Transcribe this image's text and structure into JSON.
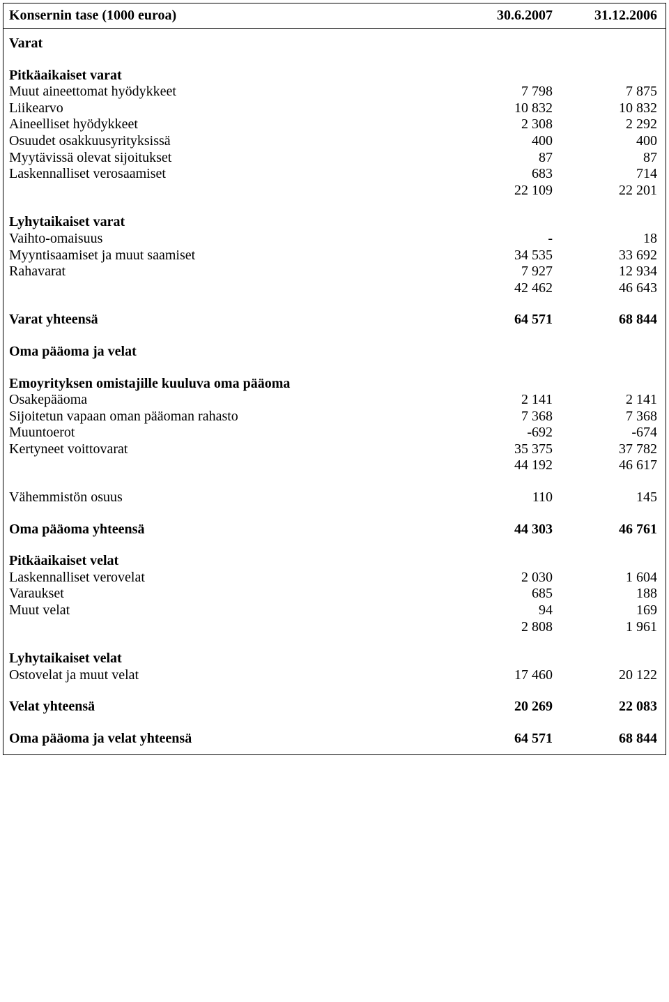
{
  "header": {
    "title": "Konsernin tase (1000 euroa)",
    "col1": "30.6.2007",
    "col2": "31.12.2006"
  },
  "sections": {
    "varat": "Varat",
    "pitkavarat": "Pitkäaikaiset varat",
    "lyhytvarat": "Lyhytaikaiset varat",
    "varatyht": "Varat yhteensä",
    "omapaaoma": "Oma pääoma ja velat",
    "emo": "Emoyrityksen omistajille kuuluva oma pääoma",
    "vahemmisto": "Vähemmistön osuus",
    "omapaaomayht": "Oma pääoma yhteensä",
    "pitkavelat": "Pitkäaikaiset velat",
    "lyhytvelat": "Lyhytaikaiset velat",
    "velatyht": "Velat yhteensä",
    "opjvyht": "Oma pääoma ja velat yhteensä"
  },
  "rows": {
    "muuaineet": {
      "label": "Muut aineettomat hyödykkeet",
      "c1": "7 798",
      "c2": "7 875"
    },
    "liikearvo": {
      "label": "Liikearvo",
      "c1": "10 832",
      "c2": "10 832"
    },
    "aineelliset": {
      "label": "Aineelliset hyödykkeet",
      "c1": "2 308",
      "c2": "2 292"
    },
    "osuudet": {
      "label": "Osuudet osakkuusyrityksissä",
      "c1": "400",
      "c2": "400"
    },
    "myytavissa": {
      "label": "Myytävissä olevat sijoitukset",
      "c1": "87",
      "c2": "87"
    },
    "laskvero": {
      "label": "Laskennalliset verosaamiset",
      "c1": "683",
      "c2": "714"
    },
    "pitkasum": {
      "label": "",
      "c1": "22 109",
      "c2": "22 201"
    },
    "vaihto": {
      "label": "Vaihto-omaisuus",
      "c1": "-",
      "c2": "18"
    },
    "myyntisaam": {
      "label": "Myyntisaamiset ja muut saamiset",
      "c1": "34 535",
      "c2": "33 692"
    },
    "rahavarat": {
      "label": "Rahavarat",
      "c1": "7 927",
      "c2": "12 934"
    },
    "lyhytsum": {
      "label": "",
      "c1": "42 462",
      "c2": "46 643"
    },
    "varatyht": {
      "c1": "64 571",
      "c2": "68 844"
    },
    "osakepaa": {
      "label": "Osakepääoma",
      "c1": "2 141",
      "c2": "2 141"
    },
    "svop": {
      "label": "Sijoitetun vapaan oman pääoman rahasto",
      "c1": "7 368",
      "c2": "7 368"
    },
    "muuntoerot": {
      "label": "Muuntoerot",
      "c1": "-692",
      "c2": "-674"
    },
    "kertyneet": {
      "label": "Kertyneet voittovarat",
      "c1": "35 375",
      "c2": "37 782"
    },
    "emosum": {
      "label": "",
      "c1": "44 192",
      "c2": "46 617"
    },
    "vahemmisto": {
      "c1": "110",
      "c2": "145"
    },
    "omapaaomayht": {
      "c1": "44 303",
      "c2": "46 761"
    },
    "laskverovelat": {
      "label": "Laskennalliset verovelat",
      "c1": "2 030",
      "c2": "1 604"
    },
    "varaukset": {
      "label": "Varaukset",
      "c1": "685",
      "c2": "188"
    },
    "muutvelat": {
      "label": "Muut velat",
      "c1": "94",
      "c2": "169"
    },
    "pitkavelatsum": {
      "label": "",
      "c1": "2 808",
      "c2": "1 961"
    },
    "ostovelat": {
      "label": "Ostovelat ja muut velat",
      "c1": "17 460",
      "c2": "20 122"
    },
    "velatyht": {
      "c1": "20 269",
      "c2": "22 083"
    },
    "opjvyht": {
      "c1": "64 571",
      "c2": "68 844"
    }
  }
}
